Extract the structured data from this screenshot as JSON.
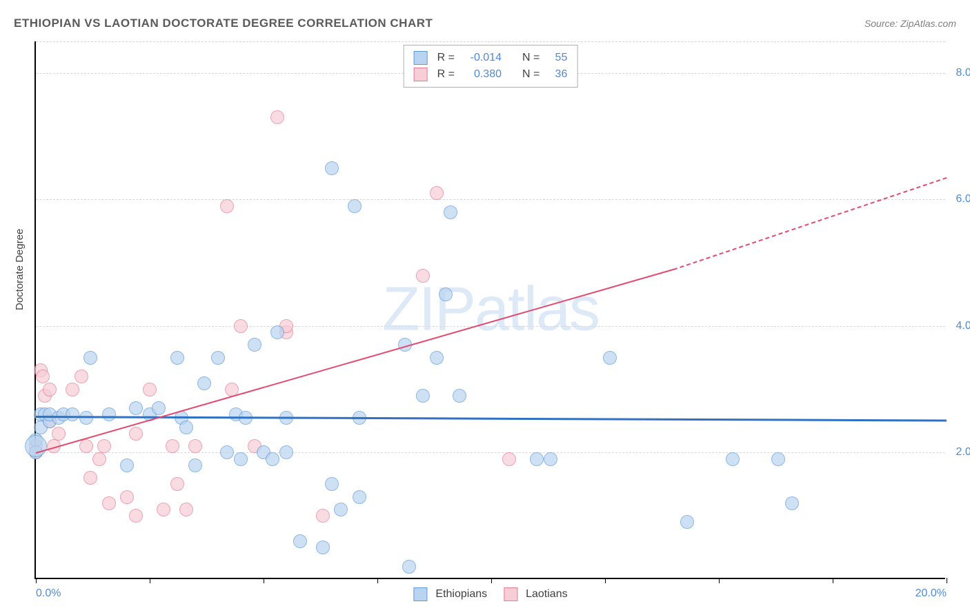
{
  "title": "ETHIOPIAN VS LAOTIAN DOCTORATE DEGREE CORRELATION CHART",
  "source": "Source: ZipAtlas.com",
  "ylabel": "Doctorate Degree",
  "watermark_bold": "ZIP",
  "watermark_thin": "atlas",
  "chart": {
    "type": "scatter",
    "xlim": [
      0,
      20
    ],
    "ylim": [
      0,
      8.5
    ],
    "yticks": [
      2.0,
      4.0,
      6.0,
      8.0
    ],
    "ytick_labels": [
      "2.0%",
      "4.0%",
      "6.0%",
      "8.0%"
    ],
    "xticks": [
      0,
      2.5,
      5,
      7.5,
      10,
      12.5,
      15,
      17.5,
      20
    ],
    "x_first_label": "0.0%",
    "x_last_label": "20.0%",
    "grid_color": "#d8d8d8",
    "background": "#ffffff",
    "point_radius": 10,
    "point_radius_big": 16,
    "series": {
      "ethiopians": {
        "label": "Ethiopians",
        "fill": "#b9d4f0",
        "stroke": "#5f9ad8",
        "fill_opacity": 0.7,
        "points": [
          [
            0.0,
            2.0
          ],
          [
            0.1,
            2.6
          ],
          [
            0.1,
            2.4
          ],
          [
            0.2,
            2.6
          ],
          [
            0.3,
            2.5
          ],
          [
            0.3,
            2.6
          ],
          [
            0.5,
            2.55
          ],
          [
            0.6,
            2.6
          ],
          [
            0.8,
            2.6
          ],
          [
            1.2,
            3.5
          ],
          [
            1.6,
            2.6
          ],
          [
            2.0,
            1.8
          ],
          [
            2.2,
            2.7
          ],
          [
            2.5,
            2.6
          ],
          [
            2.7,
            2.7
          ],
          [
            3.1,
            3.5
          ],
          [
            3.2,
            2.55
          ],
          [
            3.5,
            1.8
          ],
          [
            3.7,
            3.1
          ],
          [
            4.0,
            3.5
          ],
          [
            4.2,
            2.0
          ],
          [
            4.4,
            2.6
          ],
          [
            4.5,
            1.9
          ],
          [
            4.8,
            3.7
          ],
          [
            5.0,
            2.0
          ],
          [
            5.2,
            1.9
          ],
          [
            5.3,
            3.9
          ],
          [
            5.5,
            2.55
          ],
          [
            5.5,
            2.0
          ],
          [
            5.8,
            0.6
          ],
          [
            6.3,
            0.5
          ],
          [
            6.5,
            6.5
          ],
          [
            6.5,
            1.5
          ],
          [
            6.7,
            1.1
          ],
          [
            7.0,
            5.9
          ],
          [
            7.1,
            1.3
          ],
          [
            7.1,
            2.55
          ],
          [
            8.1,
            3.7
          ],
          [
            8.2,
            0.2
          ],
          [
            8.5,
            2.9
          ],
          [
            8.8,
            3.5
          ],
          [
            9.0,
            4.5
          ],
          [
            9.1,
            5.8
          ],
          [
            9.3,
            2.9
          ],
          [
            11.0,
            1.9
          ],
          [
            11.3,
            1.9
          ],
          [
            12.6,
            3.5
          ],
          [
            14.3,
            0.9
          ],
          [
            15.3,
            1.9
          ],
          [
            16.3,
            1.9
          ],
          [
            16.6,
            1.2
          ],
          [
            0.0,
            2.2
          ],
          [
            1.1,
            2.55
          ],
          [
            3.3,
            2.4
          ],
          [
            4.6,
            2.55
          ]
        ],
        "big_point": [
          0.0,
          2.1
        ],
        "trend": {
          "y0": 2.58,
          "y1": 2.52,
          "color": "#2f72c4",
          "width": 3
        }
      },
      "laotians": {
        "label": "Laotians",
        "fill": "#f7cdd6",
        "stroke": "#e77a95",
        "fill_opacity": 0.7,
        "points": [
          [
            0.0,
            2.1
          ],
          [
            0.1,
            3.3
          ],
          [
            0.15,
            3.2
          ],
          [
            0.2,
            2.9
          ],
          [
            0.3,
            3.0
          ],
          [
            0.3,
            2.5
          ],
          [
            0.4,
            2.1
          ],
          [
            0.5,
            2.3
          ],
          [
            0.8,
            3.0
          ],
          [
            1.0,
            3.2
          ],
          [
            1.1,
            2.1
          ],
          [
            1.2,
            1.6
          ],
          [
            1.4,
            1.9
          ],
          [
            1.5,
            2.1
          ],
          [
            1.6,
            1.2
          ],
          [
            2.0,
            1.3
          ],
          [
            2.2,
            2.3
          ],
          [
            2.2,
            1.0
          ],
          [
            2.5,
            3.0
          ],
          [
            2.8,
            1.1
          ],
          [
            3.0,
            2.1
          ],
          [
            3.1,
            1.5
          ],
          [
            3.3,
            1.1
          ],
          [
            3.5,
            2.1
          ],
          [
            4.2,
            5.9
          ],
          [
            4.3,
            3.0
          ],
          [
            4.5,
            4.0
          ],
          [
            4.8,
            2.1
          ],
          [
            5.3,
            7.3
          ],
          [
            5.5,
            3.9
          ],
          [
            5.5,
            4.0
          ],
          [
            6.3,
            1.0
          ],
          [
            8.5,
            4.8
          ],
          [
            8.8,
            6.1
          ],
          [
            10.4,
            1.9
          ],
          [
            0.0,
            2.0
          ]
        ],
        "trend": {
          "y0": 2.0,
          "y1_solid_x": 14.0,
          "y1_solid_y": 4.9,
          "y1_dash_x": 20.0,
          "y1_dash_y": 6.35,
          "color": "#e34a6f",
          "width": 2.5
        }
      }
    }
  },
  "legend_top": [
    {
      "swatch_fill": "#b9d4f0",
      "swatch_stroke": "#5f9ad8",
      "r_label": "R =",
      "r_val": "-0.014",
      "n_label": "N =",
      "n_val": "55"
    },
    {
      "swatch_fill": "#f7cdd6",
      "swatch_stroke": "#e77a95",
      "r_label": "R =",
      "r_val": "0.380",
      "n_label": "N =",
      "n_val": "36"
    }
  ],
  "legend_bottom": [
    {
      "swatch_fill": "#b9d4f0",
      "swatch_stroke": "#5f9ad8",
      "label": "Ethiopians"
    },
    {
      "swatch_fill": "#f7cdd6",
      "swatch_stroke": "#e77a95",
      "label": "Laotians"
    }
  ]
}
